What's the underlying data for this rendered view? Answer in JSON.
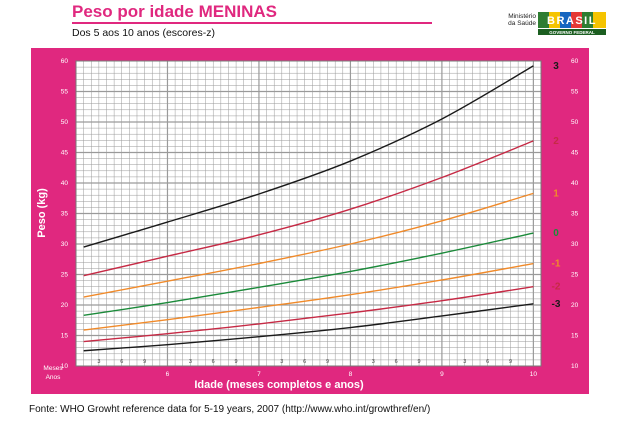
{
  "header": {
    "title": "Peso por idade MENINAS",
    "subtitle": "Dos 5 aos 10 anos (escores-z)"
  },
  "logo": {
    "ministry_line1": "Ministério",
    "ministry_line2": "da Saúde",
    "brand_text": "BRASIL",
    "brand_sub": "GOVERNO FEDERAL"
  },
  "colors": {
    "frame": "#e0287f",
    "grid": "#9a9a9a",
    "plot_bg": "#ffffff",
    "z3": "#1a1a1a",
    "z2": "#c62a45",
    "z1": "#f08a2a",
    "z0": "#1b8a3a",
    "zm1": "#f08a2a",
    "zm2": "#c62a45",
    "zm3": "#1a1a1a"
  },
  "chart_data": {
    "type": "line",
    "xlabel": "Idade (meses completos e anos)",
    "ylabel": "Peso (kg)",
    "ylim": [
      10,
      60
    ],
    "xlim": [
      60,
      121
    ],
    "y_ticks": [
      10,
      15,
      20,
      25,
      30,
      35,
      40,
      45,
      50,
      55,
      60
    ],
    "grid": true,
    "x_axis_corner_labels": [
      "Meses",
      "Anos"
    ],
    "month_tick_labels": [
      "3",
      "6",
      "9",
      "3",
      "6",
      "9",
      "3",
      "6",
      "9",
      "3",
      "6",
      "9",
      "3",
      "6",
      "9"
    ],
    "month_tick_positions": [
      63,
      66,
      69,
      75,
      78,
      81,
      87,
      90,
      93,
      99,
      102,
      105,
      111,
      114,
      117
    ],
    "year_tick_labels": [
      "6",
      "7",
      "8",
      "9",
      "10"
    ],
    "year_tick_positions": [
      72,
      84,
      96,
      108,
      120
    ],
    "x": [
      61,
      72,
      84,
      96,
      108,
      120
    ],
    "series": [
      {
        "name": "3",
        "color_key": "z3",
        "values": [
          29.5,
          33.6,
          38.2,
          43.6,
          50.5,
          59.2
        ]
      },
      {
        "name": "2",
        "color_key": "z2",
        "values": [
          24.8,
          28.0,
          31.5,
          35.7,
          40.9,
          46.9
        ]
      },
      {
        "name": "1",
        "color_key": "z1",
        "values": [
          21.3,
          23.9,
          26.8,
          30.0,
          33.8,
          38.3
        ]
      },
      {
        "name": "0",
        "color_key": "z0",
        "values": [
          18.3,
          20.4,
          22.9,
          25.5,
          28.5,
          31.8
        ]
      },
      {
        "name": "-1",
        "color_key": "zm1",
        "values": [
          15.9,
          17.6,
          19.6,
          21.7,
          24.1,
          26.8
        ]
      },
      {
        "name": "-2",
        "color_key": "zm2",
        "values": [
          14.0,
          15.3,
          16.9,
          18.7,
          20.7,
          23.0
        ]
      },
      {
        "name": "-3",
        "color_key": "zm3",
        "values": [
          12.5,
          13.5,
          14.8,
          16.3,
          18.2,
          20.2
        ]
      }
    ]
  },
  "footer": {
    "source": "Fonte: WHO Growht reference data for 5-19 years, 2007 (http://www.who.int/growthref/en/)"
  }
}
